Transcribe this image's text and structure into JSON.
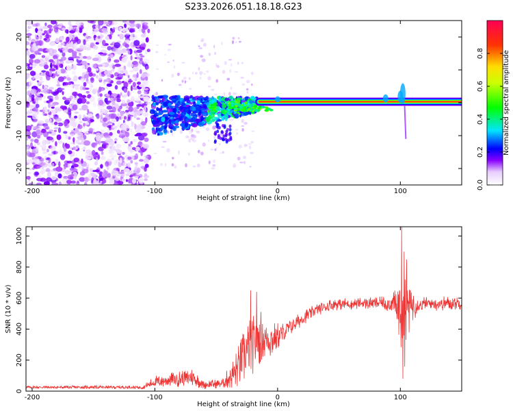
{
  "title": "S233.2026.051.18.18.G23",
  "chart_data": [
    {
      "type": "heatmap",
      "name": "spectrogram",
      "xlabel": "Height of straight line (km)",
      "ylabel": "Frequency (Hz)",
      "xlim": [
        -205,
        150
      ],
      "ylim": [
        -25,
        25
      ],
      "x_ticks": [
        -200,
        -100,
        0,
        100
      ],
      "x_tick_labels": [
        "-200",
        "-100",
        "0",
        "100"
      ],
      "y_ticks": [
        -20,
        -10,
        0,
        10,
        20
      ],
      "y_tick_labels": [
        "-20",
        "-10",
        "0",
        "10",
        "20"
      ],
      "colorbar": {
        "label": "Normalized spectral amplitude",
        "range": [
          0,
          1
        ],
        "ticks": [
          0.0,
          0.2,
          0.4,
          0.6,
          0.8
        ],
        "tick_labels": [
          "0.0",
          "0.2",
          "0.4",
          "0.6",
          "0.8"
        ],
        "stops": [
          {
            "value": 0.0,
            "color": "#ffffff"
          },
          {
            "value": 0.08,
            "color": "#e6ccff"
          },
          {
            "value": 0.15,
            "color": "#8800ff"
          },
          {
            "value": 0.22,
            "color": "#0000ff"
          },
          {
            "value": 0.33,
            "color": "#00e5ff"
          },
          {
            "value": 0.47,
            "color": "#00ff00"
          },
          {
            "value": 0.62,
            "color": "#ccff00"
          },
          {
            "value": 0.72,
            "color": "#ffdd00"
          },
          {
            "value": 0.85,
            "color": "#ff3300"
          },
          {
            "value": 1.0,
            "color": "#ff0055"
          }
        ]
      },
      "regions": [
        {
          "description": "noise",
          "x_range": [
            -205,
            -100
          ],
          "freq_range": [
            -25,
            25
          ]
        },
        {
          "description": "transition",
          "x_range": [
            -100,
            -20
          ],
          "freq_range": [
            -10,
            5
          ]
        },
        {
          "description": "carrier",
          "x_range": [
            0,
            150
          ],
          "frequency": 0.3
        }
      ]
    },
    {
      "type": "line",
      "name": "snr",
      "xlabel": "Height of straight line (km)",
      "ylabel": "SNR (10 * v/v)",
      "xlim": [
        -205,
        150
      ],
      "ylim": [
        0,
        1060
      ],
      "x_ticks": [
        -200,
        -100,
        0,
        100
      ],
      "x_tick_labels": [
        "-200",
        "-100",
        "0",
        "100"
      ],
      "y_ticks": [
        0,
        200,
        400,
        600,
        800,
        1000
      ],
      "y_tick_labels": [
        "0",
        "200",
        "400",
        "600",
        "800",
        "1000"
      ],
      "color": "#ee3333",
      "envelope": [
        {
          "x": -205,
          "y": 25,
          "noise": 10
        },
        {
          "x": -110,
          "y": 25,
          "noise": 12
        },
        {
          "x": -100,
          "y": 60,
          "noise": 40
        },
        {
          "x": -70,
          "y": 90,
          "noise": 60
        },
        {
          "x": -60,
          "y": 40,
          "noise": 30
        },
        {
          "x": -45,
          "y": 50,
          "noise": 30
        },
        {
          "x": -35,
          "y": 120,
          "noise": 110
        },
        {
          "x": -25,
          "y": 250,
          "noise": 200
        },
        {
          "x": -15,
          "y": 350,
          "noise": 180
        },
        {
          "x": -5,
          "y": 330,
          "noise": 120
        },
        {
          "x": 5,
          "y": 380,
          "noise": 60
        },
        {
          "x": 15,
          "y": 440,
          "noise": 50
        },
        {
          "x": 30,
          "y": 520,
          "noise": 40
        },
        {
          "x": 45,
          "y": 560,
          "noise": 40
        },
        {
          "x": 85,
          "y": 570,
          "noise": 40
        },
        {
          "x": 95,
          "y": 560,
          "noise": 80
        },
        {
          "x": 99,
          "y": 500,
          "noise": 250
        },
        {
          "x": 104,
          "y": 550,
          "noise": 400
        },
        {
          "x": 108,
          "y": 560,
          "noise": 150
        },
        {
          "x": 115,
          "y": 560,
          "noise": 50
        },
        {
          "x": 150,
          "y": 570,
          "noise": 45
        }
      ],
      "peaks": [
        {
          "x": -22,
          "y": 650
        },
        {
          "x": -17,
          "y": 640
        },
        {
          "x": 101,
          "y": 1060
        },
        {
          "x": 103,
          "y": 900
        },
        {
          "x": 102,
          "y": 80
        }
      ]
    }
  ]
}
